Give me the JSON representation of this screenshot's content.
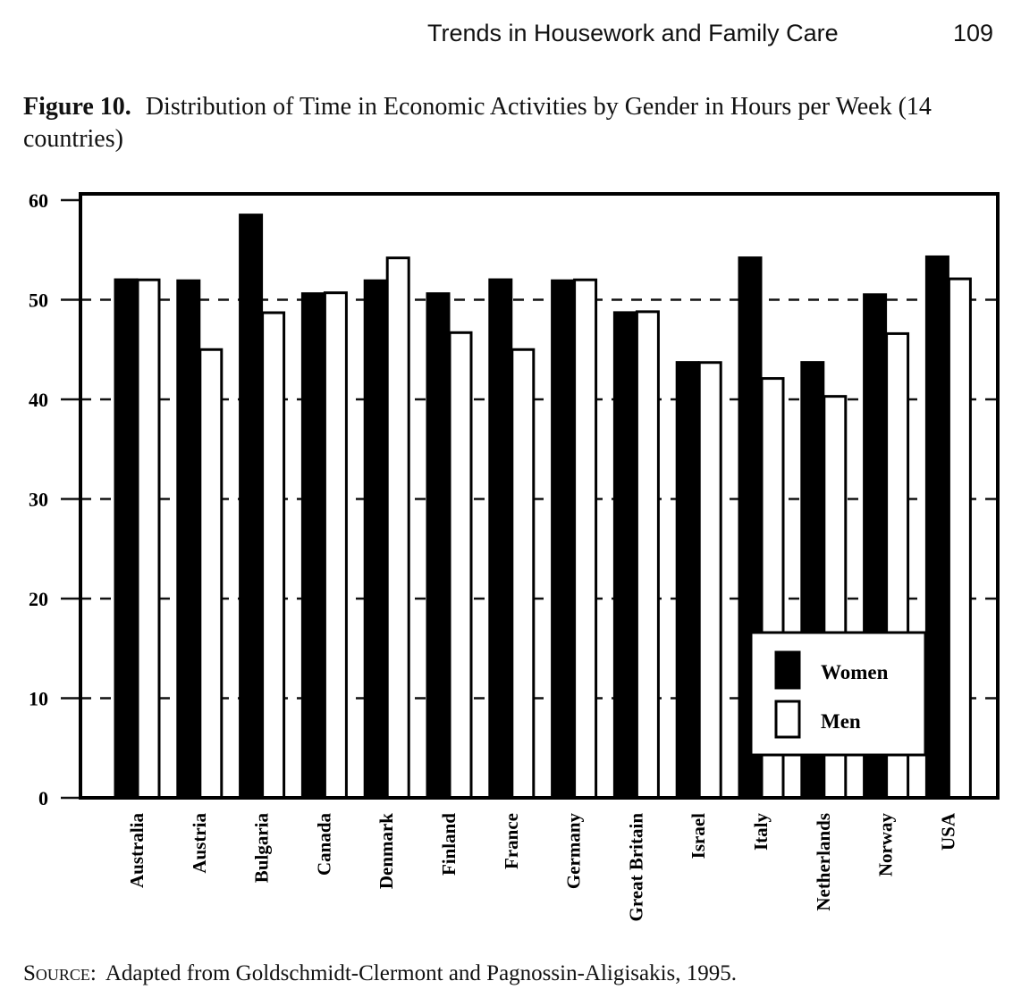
{
  "header": {
    "running_head": "Trends in Housework and Family Care",
    "page_number": "109"
  },
  "caption": {
    "label": "Figure 10.",
    "text": "Distribution of Time in Economic Activities by Gender in Hours per Week (14 countries)"
  },
  "source": {
    "label": "Source:",
    "text": "Adapted from Goldschmidt-Clermont and Pagnossin-Aligisakis, 1995."
  },
  "chart_data": {
    "type": "bar",
    "title": "Distribution of Time in Economic Activities by Gender in Hours per Week (14 countries)",
    "xlabel": "",
    "ylabel": "",
    "ylim": [
      0,
      60
    ],
    "yticks": [
      "0",
      "10",
      "20",
      "30",
      "40",
      "50",
      "60"
    ],
    "grid": "dashed horizontal",
    "legend_position": "bottom-right",
    "categories": [
      "Australia",
      "Austria",
      "Bulgaria",
      "Canada",
      "Denmark",
      "Finland",
      "France",
      "Germany",
      "Great Britain",
      "Israel",
      "Italy",
      "Netherlands",
      "Norway",
      "USA"
    ],
    "series": [
      {
        "name": "Women",
        "color": "#000000",
        "values": [
          52.1,
          52.0,
          58.6,
          50.7,
          52.0,
          50.7,
          52.1,
          52.0,
          48.8,
          43.8,
          54.3,
          43.8,
          50.6,
          54.4
        ]
      },
      {
        "name": "Men",
        "color": "#ffffff",
        "values": [
          52.0,
          45.0,
          48.7,
          50.7,
          54.2,
          46.7,
          45.0,
          52.0,
          48.8,
          43.7,
          42.1,
          40.3,
          46.6,
          52.1
        ]
      }
    ]
  }
}
